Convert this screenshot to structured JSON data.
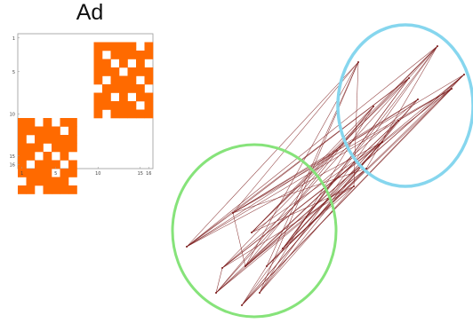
{
  "title": "Ad",
  "colors": {
    "matrix_fill": "#FF6A00",
    "axis": "#9a9a9a",
    "edge": "#7a1a1a",
    "cluster_left": "#86E37A",
    "cluster_right": "#86D6EE"
  },
  "matrix": {
    "size": 16,
    "x_ticks": [
      "1",
      "5",
      "10",
      "15",
      "16"
    ],
    "y_ticks": [
      "1",
      "5",
      "10",
      "15",
      "16"
    ],
    "blocks": [
      {
        "name": "top-right-block",
        "row_start": 1,
        "col_start": 9,
        "rows": [
          "1111101",
          "1011111",
          "1101010",
          "1110111",
          "1011101",
          "0111110",
          "1101011",
          "1111101",
          "1011111"
        ]
      },
      {
        "name": "bottom-left-block",
        "row_start": 10,
        "col_start": 0,
        "rows": [
          "1101011",
          "1111101",
          "1011111",
          "1110111",
          "1101010",
          "1011101",
          "1111011",
          "0111110",
          "1101111"
        ]
      }
    ]
  }
}
